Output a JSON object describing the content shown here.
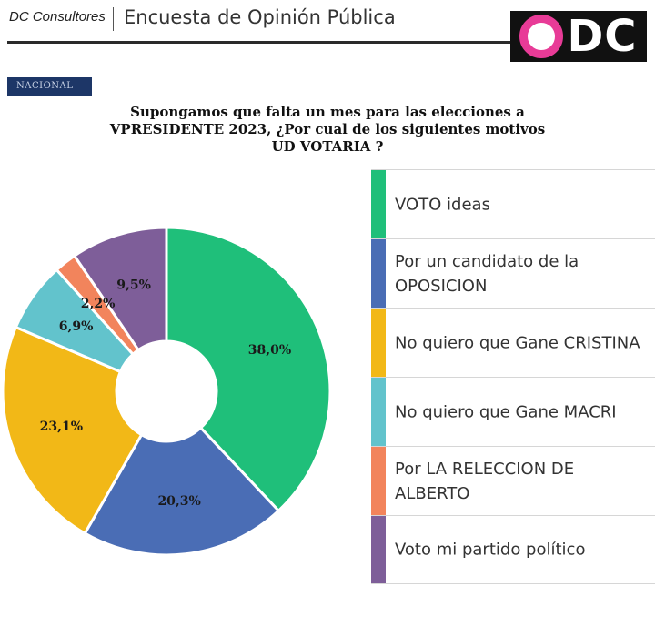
{
  "header": {
    "brand": "DC Consultores",
    "title": "Encuesta de Opinión Pública",
    "logo_text": "DC"
  },
  "section_tag": "NACIONAL",
  "colors": {
    "green": "#1fbf7a",
    "blue": "#4a6db5",
    "yellow": "#f2b817",
    "teal": "#62c3cc",
    "orange": "#f2845c",
    "purple": "#7e5e99",
    "logo_accent": "#e83b97"
  },
  "chart_data": {
    "type": "pie",
    "variant": "donut",
    "title": "Supongamos que falta un mes para las elecciones a VPRESIDENTE 2023, ¿Por cual de los siguientes motivos UD VOTARIA ?",
    "series": [
      {
        "name": "VOTO ideas",
        "value": 38.0,
        "label": "38,0%",
        "color": "#1fbf7a"
      },
      {
        "name": "Por un candidato de la OPOSICION",
        "value": 20.3,
        "label": "20,3%",
        "color": "#4a6db5"
      },
      {
        "name": "No quiero que Gane CRISTINA",
        "value": 23.1,
        "label": "23,1%",
        "color": "#f2b817"
      },
      {
        "name": "No quiero que Gane MACRI",
        "value": 6.9,
        "label": "6,9%",
        "color": "#62c3cc"
      },
      {
        "name": "Por LA RELECCION DE ALBERTO",
        "value": 2.2,
        "label": "2,2%",
        "color": "#f2845c"
      },
      {
        "name": "Voto mi partido político",
        "value": 9.5,
        "label": "9,5%",
        "color": "#7e5e99"
      }
    ],
    "legend_position": "right"
  }
}
